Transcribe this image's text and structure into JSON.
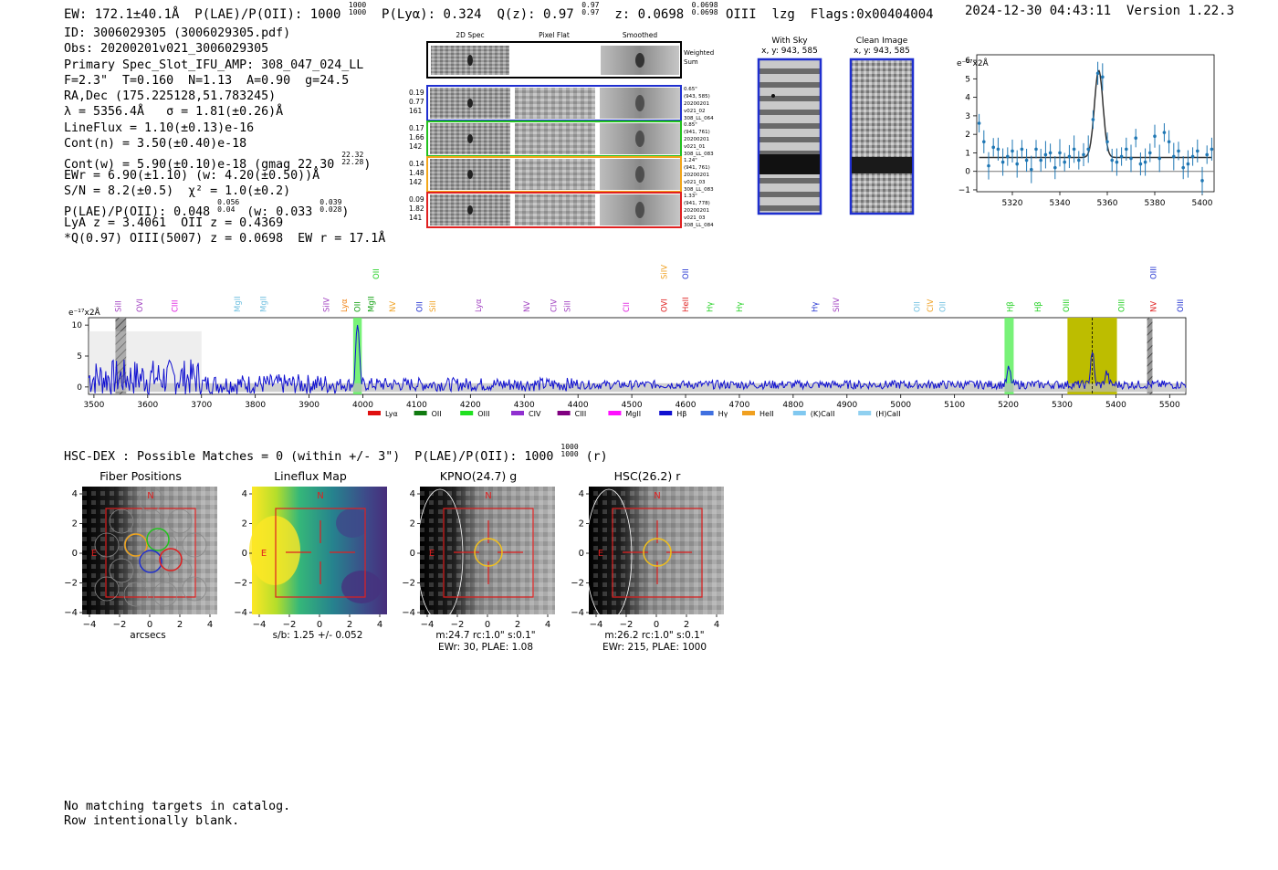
{
  "header": {
    "ew": "EW: 172.1±40.1Å",
    "plae_label": "P(LAE)/P(OII): 1000",
    "plae_hi": "1000",
    "plae_lo": "1000",
    "plya": "P(Lyα): 0.324",
    "qz_label": "Q(z): 0.97",
    "qz_hi": "0.97",
    "qz_lo": "0.97",
    "z_label": "z: 0.0698",
    "z_hi": "0.0698",
    "z_lo": "0.0698",
    "line": "OIII",
    "tag": "lzg",
    "flags": "Flags:0x00404004",
    "timestamp": "2024-12-30 04:43:11",
    "version": "Version 1.22.3"
  },
  "info": {
    "id": "ID: 3006029305 (3006029305.pdf)",
    "obs": "Obs: 20200201v021_3006029305",
    "slot": "Primary Spec_Slot_IFU_AMP: 308_047_024_LL",
    "params": "F=2.3\"  T=0.160  N=1.13  A=0.90  g=24.5",
    "radec": "RA,Dec (175.225128,51.783245)",
    "lambda": "λ = 5356.4Å   σ = 1.81(±0.26)Å",
    "lineflux": "LineFlux = 1.10(±0.13)e-16",
    "contn": "Cont(n) = 3.50(±0.40)e-18",
    "contw_main": "Cont(w) = 5.90(±0.10)e-18 (gmag 22.30",
    "gmag_hi": "22.32",
    "gmag_lo": "22.28",
    "contw_end": ")",
    "ewr": "EWr = 6.90(±1.10) (w: 4.20(±0.50))Å",
    "sn": "S/N = 8.2(±0.5)  χ² = 1.0(±0.2)",
    "plae_main": "P(LAE)/P(OII): 0.048",
    "plae_hi": "0.056",
    "plae_lo": "0.04",
    "plae_mid": " (w: 0.033",
    "plae_w_hi": "0.039",
    "plae_w_lo": "0.028",
    "plae_end": ")",
    "lya": "LyA z = 3.4061  OII z = 0.4369",
    "q": "*Q(0.97) OIII(5007) z = 0.0698  EW r = 17.1Å"
  },
  "cutouts": {
    "col_headers": [
      "2D Spec",
      "Pixel Flat",
      "Smoothed"
    ],
    "weighted_sum": [
      "Weighted",
      "Sum"
    ],
    "rows": [
      {
        "nums": [
          "0.19",
          "0.77",
          "161"
        ],
        "color": "#1f2fcf",
        "right": [
          "0.65\"",
          "(943, 585)",
          "20200201",
          "v021_02",
          "308_LL_064"
        ]
      },
      {
        "nums": [
          "0.17",
          "1.66",
          "142"
        ],
        "color": "#22c01e",
        "right": [
          "0.85\"",
          "(941, 761)",
          "20200201",
          "v021_01",
          "308_LL_083"
        ]
      },
      {
        "nums": [
          "0.14",
          "1.48",
          "142"
        ],
        "color": "#f2a51a",
        "right": [
          "1.24\"",
          "(941, 761)",
          "20200201",
          "v021_03",
          "308_LL_083"
        ]
      },
      {
        "nums": [
          "0.09",
          "1.82",
          "141"
        ],
        "color": "#e02020",
        "right": [
          "1.33\"",
          "(941, 778)",
          "20200201",
          "v021_03",
          "308_LL_084"
        ]
      }
    ],
    "with_sky": "With Sky",
    "with_sky_xy": "x, y: 943, 585",
    "clean": "Clean Image",
    "clean_xy": "x, y: 943, 585"
  },
  "colors": {
    "blue": "#1f2fcf",
    "green": "#22c01e",
    "orange": "#f2a51a",
    "red": "#e02020",
    "fit": "#1f77b4",
    "spec": "#1010d0",
    "olive": "#bdbd00"
  },
  "chart_data": [
    {
      "type": "line",
      "title": "",
      "ylabel_unit": "e⁻¹⁷x2Å",
      "xlim": [
        5305,
        5405
      ],
      "ylim": [
        -1.1,
        6.3
      ],
      "xticks": [
        5320,
        5340,
        5360,
        5380,
        5400
      ],
      "yticks": [
        -1,
        0,
        1,
        2,
        3,
        4,
        5,
        6
      ],
      "series": [
        {
          "name": "data",
          "x": [
            5306,
            5308,
            5310,
            5312,
            5314,
            5316,
            5318,
            5320,
            5322,
            5324,
            5326,
            5328,
            5330,
            5332,
            5334,
            5336,
            5338,
            5340,
            5342,
            5344,
            5346,
            5348,
            5350,
            5352,
            5354,
            5356,
            5358,
            5360,
            5362,
            5364,
            5366,
            5368,
            5370,
            5372,
            5374,
            5376,
            5378,
            5380,
            5382,
            5384,
            5386,
            5388,
            5390,
            5392,
            5394,
            5396,
            5398,
            5400,
            5402,
            5404
          ],
          "y": [
            2.6,
            1.6,
            0.3,
            1.3,
            1.2,
            0.5,
            0.8,
            1.1,
            0.4,
            1.2,
            0.6,
            0.1,
            1.2,
            0.6,
            0.9,
            1.0,
            0.2,
            1.0,
            0.5,
            0.8,
            1.2,
            0.6,
            0.9,
            1.2,
            2.8,
            5.3,
            5.1,
            1.6,
            0.6,
            0.5,
            0.8,
            1.2,
            0.7,
            1.8,
            0.4,
            0.5,
            1.0,
            1.9,
            0.7,
            2.1,
            1.6,
            0.8,
            1.1,
            0.2,
            0.4,
            0.8,
            1.1,
            -0.5,
            0.9,
            1.2
          ]
        },
        {
          "name": "fit",
          "baseline": 0.75,
          "amplitude": 4.7,
          "center": 5356.4,
          "sigma": 1.81
        }
      ]
    },
    {
      "type": "line",
      "ylabel_unit": "e⁻¹⁷x2Å",
      "xlim": [
        3490,
        5530
      ],
      "ylim": [
        -1.2,
        11.2
      ],
      "xticks": [
        3500,
        3600,
        3700,
        3800,
        3900,
        4000,
        4100,
        4200,
        4300,
        4400,
        4500,
        4600,
        4700,
        4800,
        4900,
        5000,
        5100,
        5200,
        5300,
        5400,
        5500
      ],
      "yticks": [
        0,
        5,
        10
      ],
      "highlight_bands": [
        {
          "x": [
            3540,
            3560
          ],
          "kind": "hatched"
        },
        {
          "x": [
            3982,
            3998
          ],
          "kind": "green"
        },
        {
          "x": [
            5193,
            5210
          ],
          "kind": "green"
        },
        {
          "x": [
            5310,
            5402
          ],
          "kind": "olive"
        },
        {
          "x": [
            5458,
            5468
          ],
          "kind": "hatched"
        }
      ],
      "peaks": [
        {
          "x": 3990,
          "y": 10.2
        },
        {
          "x": 5201,
          "y": 2.6
        },
        {
          "x": 5356,
          "y": 5.5
        },
        {
          "x": 5383,
          "y": 2.0
        }
      ],
      "line_labels": [
        {
          "x": 3545,
          "label": "SiII",
          "color": "#a040c0",
          "row": 2
        },
        {
          "x": 3585,
          "label": "OVI",
          "color": "#a040c0",
          "row": 2
        },
        {
          "x": 3650,
          "label": "CIII",
          "color": "#e020e0",
          "row": 2
        },
        {
          "x": 3767,
          "label": "MgII",
          "color": "#70c0e0",
          "row": 2
        },
        {
          "x": 3815,
          "label": "MgII",
          "color": "#70c0e0",
          "row": 2
        },
        {
          "x": 3932,
          "label": "SiIV",
          "color": "#a040c0",
          "row": 2
        },
        {
          "x": 3965,
          "label": "Lyα",
          "color": "#f08010",
          "row": 2
        },
        {
          "x": 3990,
          "label": "OII",
          "color": "#10a010",
          "row": 2
        },
        {
          "x": 4015,
          "label": "MgII",
          "color": "#10a010",
          "row": 2
        },
        {
          "x": 4025,
          "label": "OII",
          "color": "#20d020",
          "row": 1
        },
        {
          "x": 4055,
          "label": "NV",
          "color": "#f0a020",
          "row": 2
        },
        {
          "x": 4105,
          "label": "OII",
          "color": "#2030d0",
          "row": 2
        },
        {
          "x": 4130,
          "label": "SiII",
          "color": "#f0a020",
          "row": 2
        },
        {
          "x": 4215,
          "label": "Lyα",
          "color": "#a040c0",
          "row": 2
        },
        {
          "x": 4305,
          "label": "NV",
          "color": "#a040c0",
          "row": 2
        },
        {
          "x": 4355,
          "label": "CIV",
          "color": "#a040c0",
          "row": 2
        },
        {
          "x": 4380,
          "label": "SiII",
          "color": "#a040c0",
          "row": 2
        },
        {
          "x": 4490,
          "label": "CII",
          "color": "#e020e0",
          "row": 2
        },
        {
          "x": 4560,
          "label": "OVI",
          "color": "#e02020",
          "row": 2
        },
        {
          "x": 4560,
          "label": "SiIV",
          "color": "#f0a020",
          "row": 1
        },
        {
          "x": 4600,
          "label": "HeII",
          "color": "#e02020",
          "row": 2
        },
        {
          "x": 4600,
          "label": "OII",
          "color": "#2030d0",
          "row": 1
        },
        {
          "x": 4645,
          "label": "Hγ",
          "color": "#20d020",
          "row": 2
        },
        {
          "x": 4700,
          "label": "Hγ",
          "color": "#20d020",
          "row": 2
        },
        {
          "x": 4840,
          "label": "Hγ",
          "color": "#2030d0",
          "row": 2
        },
        {
          "x": 4880,
          "label": "SiIV",
          "color": "#a040c0",
          "row": 2
        },
        {
          "x": 5030,
          "label": "OII",
          "color": "#70c0e0",
          "row": 2
        },
        {
          "x": 5055,
          "label": "CIV",
          "color": "#f0a020",
          "row": 2
        },
        {
          "x": 5078,
          "label": "OII",
          "color": "#70c0e0",
          "row": 2
        },
        {
          "x": 5203,
          "label": "Hβ",
          "color": "#20d020",
          "row": 2
        },
        {
          "x": 5255,
          "label": "Hβ",
          "color": "#20d020",
          "row": 2
        },
        {
          "x": 5308,
          "label": "OIII",
          "color": "#20d020",
          "row": 2
        },
        {
          "x": 5410,
          "label": "OIII",
          "color": "#20d020",
          "row": 2
        },
        {
          "x": 5470,
          "label": "NV",
          "color": "#e02020",
          "row": 2
        },
        {
          "x": 5470,
          "label": "OIII",
          "color": "#2030d0",
          "row": 1
        },
        {
          "x": 5520,
          "label": "OIII",
          "color": "#2030d0",
          "row": 2
        }
      ],
      "legend": [
        {
          "label": "Lyα",
          "color": "#e01010"
        },
        {
          "label": "OII",
          "color": "#107a10"
        },
        {
          "label": "OIII",
          "color": "#20e020"
        },
        {
          "label": "CIV",
          "color": "#9030d0"
        },
        {
          "label": "CIII",
          "color": "#800080"
        },
        {
          "label": "MgII",
          "color": "#ff10ff"
        },
        {
          "label": "Hβ",
          "color": "#1010d0"
        },
        {
          "label": "Hγ",
          "color": "#4070e0"
        },
        {
          "label": "HeII",
          "color": "#f0a020"
        },
        {
          "label": "(K)CaII",
          "color": "#80c8f0"
        },
        {
          "label": "(H)CaII",
          "color": "#90d0f0"
        }
      ]
    }
  ],
  "hsc": {
    "line_main": "HSC-DEX : Possible Matches = 0 (within +/- 3\")  P(LAE)/P(OII): 1000",
    "hi": "1000",
    "lo": "1000",
    "band": "(r)"
  },
  "panels": [
    {
      "title": "Fiber Positions",
      "caption1": "arcsecs",
      "caption2": "",
      "caption3": "",
      "style": "gray",
      "fibers": true
    },
    {
      "title": "Lineflux Map",
      "caption1": "s/b: 1.25 +/- 0.052",
      "caption2": "",
      "caption3": "",
      "style": "viridis",
      "fibers": false
    },
    {
      "title": "KPNO(24.7) g",
      "caption1": "m:24.7 rc:1.0\"  s:0.1\"",
      "caption2": "EWr: 30, PLAE: 1.08",
      "caption3": "",
      "style": "gray",
      "fibers": false
    },
    {
      "title": "HSC(26.2) r",
      "caption1": "m:26.2 rc:1.0\"  s:0.1\"",
      "caption2": "EWr: 215, PLAE: 1000",
      "caption3": "",
      "style": "gray",
      "fibers": false
    }
  ],
  "panel_axes": {
    "ticks": [
      "−4",
      "−2",
      "0",
      "2",
      "4"
    ],
    "n": "N",
    "e": "E"
  },
  "bottom": {
    "line1": "No matching targets in catalog.",
    "line2": "Row intentionally blank."
  }
}
